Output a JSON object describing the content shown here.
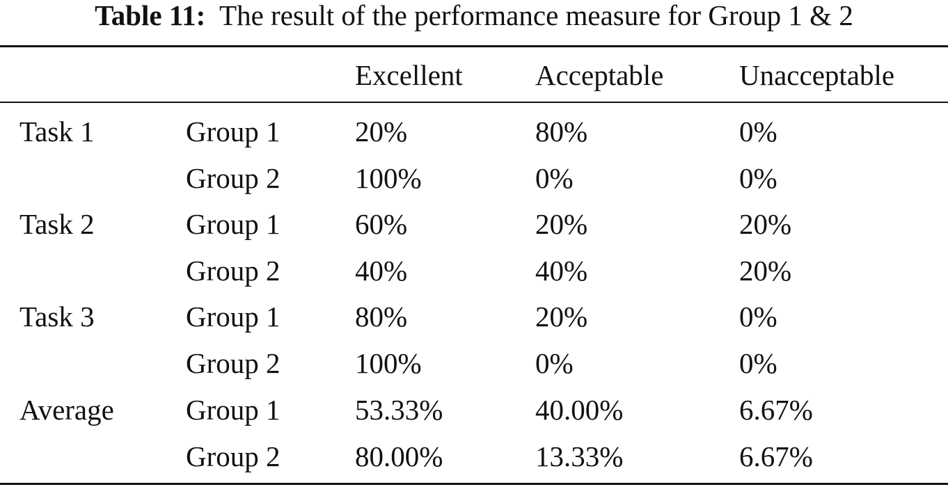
{
  "caption": {
    "label": "Table 11:",
    "text": "The result of the performance measure for Group 1 & 2"
  },
  "headers": [
    "Excellent",
    "Acceptable",
    "Unacceptable"
  ],
  "rows": [
    {
      "task": "Task 1",
      "group": "Group 1",
      "values": [
        "20%",
        "80%",
        "0%"
      ]
    },
    {
      "task": "",
      "group": "Group 2",
      "values": [
        "100%",
        "0%",
        "0%"
      ]
    },
    {
      "task": "Task 2",
      "group": "Group 1",
      "values": [
        "60%",
        "20%",
        "20%"
      ]
    },
    {
      "task": "",
      "group": "Group 2",
      "values": [
        "40%",
        "40%",
        "20%"
      ]
    },
    {
      "task": "Task 3",
      "group": "Group 1",
      "values": [
        "80%",
        "20%",
        "0%"
      ]
    },
    {
      "task": "",
      "group": "Group 2",
      "values": [
        "100%",
        "0%",
        "0%"
      ]
    },
    {
      "task": "Average",
      "group": "Group 1",
      "values": [
        "53.33%",
        "40.00%",
        "6.67%"
      ]
    },
    {
      "task": "",
      "group": "Group 2",
      "values": [
        "80.00%",
        "13.33%",
        "6.67%"
      ]
    }
  ]
}
